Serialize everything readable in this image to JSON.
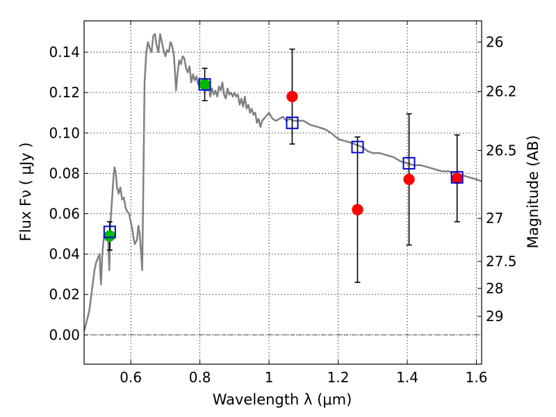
{
  "chart_data": {
    "type": "scatter",
    "title": "",
    "xlabel": "Wavelength  λ (μm)",
    "ylabel": "Flux  Fν  ( μJy )",
    "ylabel_right": "Magnitude (AB)",
    "xlim": [
      0.465,
      1.615
    ],
    "ylim": [
      -0.0145,
      0.1555
    ],
    "x_ticks": [
      0.6,
      0.8,
      1.0,
      1.2,
      1.4,
      1.6
    ],
    "x_tick_labels": [
      "0.6",
      "0.8",
      "1",
      "1.2",
      "1.4",
      "1.6"
    ],
    "y_ticks": [
      0.0,
      0.02,
      0.04,
      0.06,
      0.08,
      0.1,
      0.12,
      0.14
    ],
    "y_tick_labels": [
      "0.00",
      "0.02",
      "0.04",
      "0.06",
      "0.08",
      "0.10",
      "0.12",
      "0.14"
    ],
    "right_axis_ticks": [
      {
        "label": "26",
        "flux": 0.145
      },
      {
        "label": "26.2",
        "flux": 0.1205
      },
      {
        "label": "26.5",
        "flux": 0.0913
      },
      {
        "label": "27",
        "flux": 0.0577
      },
      {
        "label": "27.5",
        "flux": 0.0364
      },
      {
        "label": "28",
        "flux": 0.023
      },
      {
        "label": "29",
        "flux": 0.0092
      }
    ],
    "grid": true,
    "zero_line": true,
    "series": [
      {
        "kind": "line",
        "color": "#808080",
        "points": [
          [
            0.465,
            0.002
          ],
          [
            0.47,
            0.005
          ],
          [
            0.48,
            0.012
          ],
          [
            0.49,
            0.025
          ],
          [
            0.495,
            0.032
          ],
          [
            0.5,
            0.036
          ],
          [
            0.505,
            0.038
          ],
          [
            0.51,
            0.04
          ],
          [
            0.512,
            0.03
          ],
          [
            0.514,
            0.025
          ],
          [
            0.517,
            0.038
          ],
          [
            0.52,
            0.045
          ],
          [
            0.524,
            0.05
          ],
          [
            0.528,
            0.047
          ],
          [
            0.532,
            0.048
          ],
          [
            0.535,
            0.045
          ],
          [
            0.538,
            0.032
          ],
          [
            0.541,
            0.055
          ],
          [
            0.545,
            0.065
          ],
          [
            0.55,
            0.078
          ],
          [
            0.553,
            0.083
          ],
          [
            0.557,
            0.08
          ],
          [
            0.56,
            0.073
          ],
          [
            0.565,
            0.07
          ],
          [
            0.57,
            0.073
          ],
          [
            0.575,
            0.067
          ],
          [
            0.58,
            0.068
          ],
          [
            0.585,
            0.063
          ],
          [
            0.59,
            0.061
          ],
          [
            0.595,
            0.06
          ],
          [
            0.6,
            0.056
          ],
          [
            0.605,
            0.052
          ],
          [
            0.608,
            0.048
          ],
          [
            0.612,
            0.045
          ],
          [
            0.618,
            0.047
          ],
          [
            0.622,
            0.054
          ],
          [
            0.626,
            0.05
          ],
          [
            0.63,
            0.04
          ],
          [
            0.633,
            0.032
          ],
          [
            0.636,
            0.07
          ],
          [
            0.64,
            0.125
          ],
          [
            0.645,
            0.14
          ],
          [
            0.65,
            0.145
          ],
          [
            0.655,
            0.142
          ],
          [
            0.66,
            0.14
          ],
          [
            0.665,
            0.148
          ],
          [
            0.67,
            0.149
          ],
          [
            0.675,
            0.143
          ],
          [
            0.68,
            0.14
          ],
          [
            0.685,
            0.149
          ],
          [
            0.69,
            0.145
          ],
          [
            0.695,
            0.141
          ],
          [
            0.7,
            0.138
          ],
          [
            0.705,
            0.141
          ],
          [
            0.71,
            0.14
          ],
          [
            0.715,
            0.145
          ],
          [
            0.72,
            0.143
          ],
          [
            0.725,
            0.138
          ],
          [
            0.728,
            0.13
          ],
          [
            0.731,
            0.121
          ],
          [
            0.735,
            0.129
          ],
          [
            0.74,
            0.136
          ],
          [
            0.745,
            0.134
          ],
          [
            0.75,
            0.138
          ],
          [
            0.755,
            0.137
          ],
          [
            0.76,
            0.132
          ],
          [
            0.765,
            0.13
          ],
          [
            0.77,
            0.133
          ],
          [
            0.775,
            0.125
          ],
          [
            0.78,
            0.129
          ],
          [
            0.785,
            0.126
          ],
          [
            0.79,
            0.128
          ],
          [
            0.795,
            0.124
          ],
          [
            0.8,
            0.125
          ],
          [
            0.805,
            0.124
          ],
          [
            0.81,
            0.1225
          ],
          [
            0.82,
            0.121
          ],
          [
            0.825,
            0.124
          ],
          [
            0.83,
            0.118
          ],
          [
            0.835,
            0.122
          ],
          [
            0.84,
            0.119
          ],
          [
            0.845,
            0.121
          ],
          [
            0.85,
            0.118
          ],
          [
            0.855,
            0.123
          ],
          [
            0.86,
            0.121
          ],
          [
            0.865,
            0.125
          ],
          [
            0.87,
            0.119
          ],
          [
            0.875,
            0.117
          ],
          [
            0.88,
            0.122
          ],
          [
            0.885,
            0.119
          ],
          [
            0.89,
            0.12
          ],
          [
            0.895,
            0.118
          ],
          [
            0.9,
            0.12
          ],
          [
            0.905,
            0.118
          ],
          [
            0.91,
            0.119
          ],
          [
            0.915,
            0.114
          ],
          [
            0.92,
            0.117
          ],
          [
            0.925,
            0.113
          ],
          [
            0.93,
            0.118
          ],
          [
            0.935,
            0.112
          ],
          [
            0.94,
            0.114
          ],
          [
            0.945,
            0.11
          ],
          [
            0.95,
            0.112
          ],
          [
            0.955,
            0.109
          ],
          [
            0.96,
            0.11
          ],
          [
            0.965,
            0.105
          ],
          [
            0.97,
            0.107
          ],
          [
            0.975,
            0.103
          ],
          [
            0.98,
            0.106
          ],
          [
            0.99,
            0.108
          ],
          [
            1.0,
            0.11
          ],
          [
            1.01,
            0.107
          ],
          [
            1.02,
            0.106
          ],
          [
            1.03,
            0.107
          ],
          [
            1.04,
            0.108
          ],
          [
            1.05,
            0.106
          ],
          [
            1.06,
            0.107
          ],
          [
            1.07,
            0.106
          ],
          [
            1.08,
            0.106
          ],
          [
            1.1,
            0.106
          ],
          [
            1.12,
            0.104
          ],
          [
            1.14,
            0.103
          ],
          [
            1.16,
            0.102
          ],
          [
            1.18,
            0.1
          ],
          [
            1.2,
            0.097
          ],
          [
            1.22,
            0.096
          ],
          [
            1.24,
            0.095
          ],
          [
            1.255,
            0.094
          ],
          [
            1.27,
            0.093
          ],
          [
            1.285,
            0.091
          ],
          [
            1.3,
            0.09
          ],
          [
            1.32,
            0.09
          ],
          [
            1.34,
            0.089
          ],
          [
            1.36,
            0.088
          ],
          [
            1.38,
            0.086
          ],
          [
            1.4,
            0.085
          ],
          [
            1.42,
            0.084
          ],
          [
            1.44,
            0.084
          ],
          [
            1.46,
            0.083
          ],
          [
            1.48,
            0.082
          ],
          [
            1.5,
            0.081
          ],
          [
            1.52,
            0.081
          ],
          [
            1.54,
            0.08
          ],
          [
            1.56,
            0.079
          ],
          [
            1.58,
            0.078
          ],
          [
            1.6,
            0.077
          ],
          [
            1.615,
            0.076
          ]
        ]
      },
      {
        "kind": "scatter-green",
        "color": "#00bb00",
        "points": [
          {
            "x": 0.539,
            "y": 0.049,
            "err": 0.007
          },
          {
            "x": 0.814,
            "y": 0.124,
            "err": 0.008
          }
        ]
      },
      {
        "kind": "scatter-red",
        "color": "#ff0000",
        "points": [
          {
            "x": 1.067,
            "y": 0.118,
            "err": 0.0235
          },
          {
            "x": 1.256,
            "y": 0.062,
            "err": 0.036
          },
          {
            "x": 1.405,
            "y": 0.077,
            "err": 0.0325
          },
          {
            "x": 1.544,
            "y": 0.0775,
            "err": 0.0215
          }
        ]
      },
      {
        "kind": "model-squares",
        "color": "#0000cc",
        "points": [
          {
            "x": 0.539,
            "y": 0.051
          },
          {
            "x": 0.814,
            "y": 0.124
          },
          {
            "x": 1.067,
            "y": 0.105
          },
          {
            "x": 1.256,
            "y": 0.093
          },
          {
            "x": 1.405,
            "y": 0.085
          },
          {
            "x": 1.544,
            "y": 0.078
          }
        ]
      }
    ]
  }
}
